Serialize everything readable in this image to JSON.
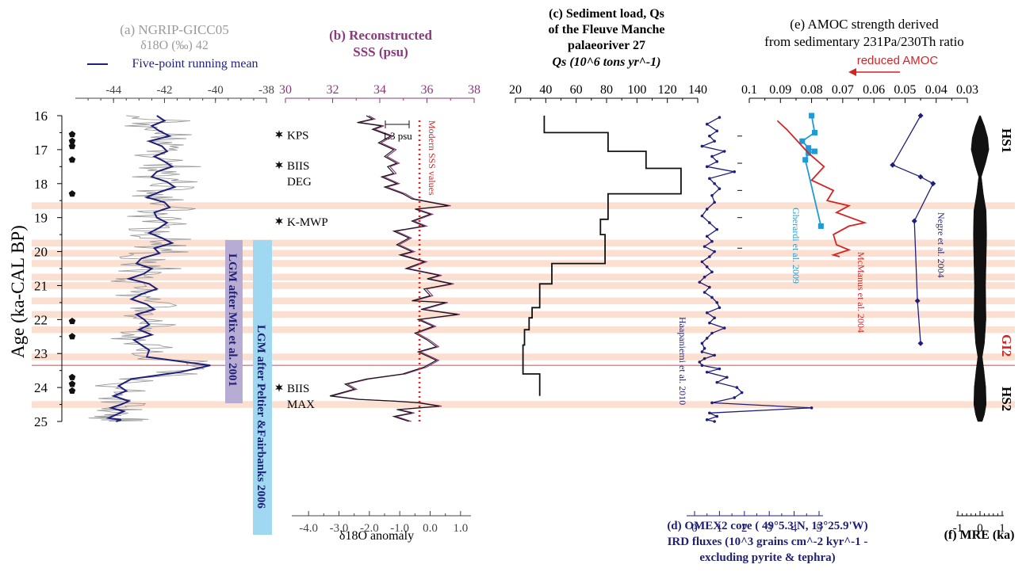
{
  "figure": {
    "y_axis": {
      "label": "Age (ka-CAL BP)",
      "ticks": [
        "16",
        "17",
        "18",
        "19",
        "20",
        "21",
        "22",
        "23",
        "24",
        "25"
      ],
      "ylim": [
        16,
        25
      ],
      "inverted": true
    },
    "stadials": {
      "hs1": "HS1",
      "gi2": "GI2",
      "hs2": "HS2"
    },
    "colors": {
      "navy": "#1f1f7a",
      "grey": "#9a9a9a",
      "magenta": "#8a3a7a",
      "red": "#d42424",
      "cyan": "#1f9ad6",
      "band": "#fbe0d2",
      "lgm_purple": "#b7acd3",
      "lgm_blue": "#9fd8f0",
      "gi2_line": "#e8828a"
    }
  },
  "panel_a": {
    "title": "(a) NGRIP-GICC05",
    "subtitle": "δ18O (‰) 42",
    "legend": "Five-point running mean",
    "ticks": [
      "-44",
      "-42",
      "-40",
      "-38"
    ]
  },
  "panel_b": {
    "title": "(b) Reconstructed",
    "subtitle": "SSS (psu)",
    "top_ticks": [
      "30",
      "32",
      "34",
      "36",
      "38"
    ],
    "bottom_ticks": [
      "-4.0",
      "-3.0",
      "-2.0",
      "-1.0",
      "0.0",
      "1.0"
    ],
    "bottom_label": "δ18O anomaly",
    "scale_bar": "1.3 psu",
    "modern_label": "Modern SSS values",
    "events": [
      {
        "label": "KPS",
        "age": 16.55
      },
      {
        "label": "BIIS",
        "label2": "DEG",
        "age": 17.45
      },
      {
        "label": "K-MWP",
        "age": 19.1
      },
      {
        "label": "BIIS",
        "label2": "MAX",
        "age": 24.0
      }
    ],
    "lgm_mix": "LGM after Mix et al. 2001",
    "lgm_peltier": "LGM after Peltier &Fairbanks 2006"
  },
  "panel_c": {
    "title_line1": "(c) Sediment load, Qs",
    "title_line2": "of the Fleuve Manche",
    "title_line3": "palaeoriver 27",
    "title_line4": "Qs (10^6 tons yr^-1)",
    "ticks": [
      "20",
      "40",
      "60",
      "80",
      "100",
      "120",
      "140"
    ]
  },
  "panel_d": {
    "label_line1": "(d) OMEX2 core ( 49°5.3'N, 13°25.9'W)",
    "label_line2": "IRD fluxes (10^3 grains cm^-2 kyr^-1 -",
    "label_line3": "excluding pyrite & tephra)",
    "ticks": [
      "0",
      "1",
      "2",
      "3",
      "4",
      "5"
    ],
    "source": "Haapaniemi et al. 2010"
  },
  "panel_e": {
    "title_line1": "(e) AMOC strength derived",
    "title_line2": "from sedimentary 231Pa/230Th ratio",
    "arrow_label": "reduced AMOC",
    "ticks": [
      "0.1",
      "0.09",
      "0.08",
      "0.07",
      "0.06",
      "0.05",
      "0.04",
      "0.03"
    ],
    "sources": [
      "Gherardi et al. 2009",
      "McManus et al. 2004",
      "Negre et al. 2004"
    ]
  },
  "panel_f": {
    "label": "(f) MRE (ka)",
    "ticks": [
      "-1",
      "0",
      "1"
    ]
  },
  "chart_data": [
    {
      "type": "line",
      "title": "(a) NGRIP-GICC05",
      "xlabel": "δ18O (‰)",
      "ylabel": "Age (ka-CAL BP)",
      "xlim": [
        -45.5,
        -38
      ],
      "ylim": [
        16,
        25
      ],
      "series": [
        {
          "name": "Five-point running mean",
          "x": [
            -42.3,
            -42.0,
            -42.5,
            -42.2,
            -41.8,
            -42.6,
            -42.1,
            -41.9,
            -42.4,
            -42.0,
            -41.7,
            -42.3,
            -42.5,
            -41.9,
            -41.6,
            -42.2,
            -42.7,
            -42.0,
            -41.8,
            -42.4,
            -42.3,
            -41.9,
            -42.2,
            -42.6,
            -42.1,
            -41.7,
            -42.4,
            -42.2,
            -42.9,
            -43.1,
            -42.5,
            -42.8,
            -43.4,
            -42.6,
            -42.3,
            -42.9,
            -43.3,
            -42.7,
            -42.4,
            -43.1,
            -42.8,
            -42.6,
            -43.0,
            -42.5,
            -43.2,
            -42.9,
            -42.6,
            -42.7,
            -40.2,
            -41.4,
            -43.3,
            -43.8,
            -43.5,
            -44.0,
            -43.4,
            -43.7,
            -44.1,
            -43.6,
            -43.9,
            -44.2,
            -43.7,
            -43.9
          ],
          "y": [
            16.0,
            16.15,
            16.3,
            16.45,
            16.6,
            16.75,
            16.9,
            17.05,
            17.2,
            17.35,
            17.5,
            17.65,
            17.8,
            17.95,
            18.1,
            18.25,
            18.4,
            18.55,
            18.7,
            18.85,
            19.0,
            19.15,
            19.3,
            19.45,
            19.6,
            19.75,
            19.9,
            20.05,
            20.2,
            20.35,
            20.5,
            20.65,
            20.8,
            20.95,
            21.1,
            21.25,
            21.4,
            21.55,
            21.7,
            21.85,
            22.0,
            22.15,
            22.3,
            22.45,
            22.6,
            22.75,
            22.9,
            23.1,
            23.35,
            23.55,
            23.75,
            23.95,
            24.1,
            24.25,
            24.4,
            24.5,
            24.6,
            24.7,
            24.8,
            24.9,
            24.95,
            25.0
          ]
        }
      ]
    },
    {
      "type": "line",
      "title": "(b) Reconstructed SSS (psu)",
      "xlabel": "δ18O anomaly",
      "ylabel": "Age (ka-CAL BP)",
      "xlim": [
        -4.5,
        1.5
      ],
      "ylim": [
        16,
        25
      ],
      "series": [
        {
          "name": "SSS",
          "x": [
            -2.1,
            -1.9,
            -2.4,
            -1.6,
            -1.9,
            -1.3,
            -1.7,
            -1.2,
            -1.5,
            -1.1,
            -1.4,
            -1.2,
            -1.6,
            -1.1,
            -1.5,
            -0.9,
            -0.6,
            0.6,
            -0.5,
            0.0,
            -0.6,
            -0.2,
            -1.2,
            -0.7,
            -1.1,
            -0.6,
            -1.0,
            -0.2,
            -0.8,
            0.3,
            -0.1,
            0.7,
            -0.2,
            0.0,
            -0.6,
            0.5,
            -0.3,
            0.9,
            -0.4,
            0.1,
            -0.5,
            -0.1,
            0.2,
            -0.4,
            0.2,
            -0.2,
            -0.9,
            -2.1,
            -2.8,
            -2.5,
            -3.3,
            -2.4,
            -1.2,
            -0.4,
            0.3,
            -1.1,
            -0.6,
            -1.2,
            -0.7
          ],
          "y": [
            16.0,
            16.1,
            16.2,
            16.3,
            16.4,
            16.6,
            16.8,
            17.0,
            17.2,
            17.4,
            17.5,
            17.7,
            17.8,
            18.0,
            18.1,
            18.3,
            18.45,
            18.65,
            18.75,
            18.9,
            19.1,
            19.25,
            19.4,
            19.6,
            19.8,
            20.0,
            20.1,
            20.3,
            20.5,
            20.7,
            20.8,
            20.95,
            21.1,
            21.3,
            21.45,
            21.5,
            21.7,
            21.85,
            22.0,
            22.2,
            22.4,
            22.6,
            22.8,
            22.95,
            23.2,
            23.4,
            23.6,
            23.75,
            23.9,
            24.05,
            24.25,
            24.35,
            24.4,
            24.45,
            24.55,
            24.65,
            24.75,
            24.85,
            25.0
          ]
        }
      ],
      "annotations": {
        "modern_value_x": -0.35
      }
    },
    {
      "type": "line",
      "title": "(c) Sediment load, Qs of the Fleuve Manche palaeoriver",
      "xlabel": "Qs (10^6 tons yr^-1)",
      "xlim": [
        20,
        140
      ],
      "ylim": [
        16,
        25
      ],
      "series": [
        {
          "name": "Qs",
          "x": [
            39,
            39,
            81,
            81,
            106,
            106,
            129,
            129,
            81,
            81,
            76,
            76,
            79,
            79,
            44,
            44,
            36,
            36,
            31,
            31,
            29,
            29,
            26,
            26,
            25,
            25,
            36,
            36
          ],
          "y": [
            16.0,
            16.5,
            16.5,
            17.05,
            17.05,
            17.55,
            17.55,
            18.3,
            18.3,
            19.05,
            19.05,
            19.5,
            19.5,
            20.35,
            20.35,
            20.95,
            20.95,
            21.65,
            21.65,
            21.95,
            21.95,
            22.3,
            22.3,
            22.75,
            22.75,
            23.6,
            23.6,
            24.25
          ]
        }
      ]
    },
    {
      "type": "line",
      "title": "(d) OMEX2 core IRD fluxes",
      "xlabel": "IRD fluxes (10^3 grains cm^-2 kyr^-1)",
      "xlim": [
        0,
        5
      ],
      "ylim": [
        16,
        25
      ],
      "series": [
        {
          "name": "Haapaniemi et al. 2010",
          "x": [
            1.0,
            0.5,
            0.9,
            0.6,
            0.8,
            0.3,
            1.2,
            0.7,
            0.9,
            0.5,
            1.6,
            0.6,
            0.8,
            1.0,
            0.7,
            0.8,
            0.5,
            0.3,
            0.6,
            0.9,
            0.5,
            0.7,
            0.4,
            0.8,
            0.6,
            0.3,
            0.5,
            0.7,
            0.4,
            0.2,
            0.6,
            0.4,
            0.7,
            0.9,
            1.0,
            0.5,
            0.8,
            0.6,
            1.2,
            0.7,
            0.5,
            0.3,
            0.4,
            0.3,
            0.8,
            0.4,
            0.2,
            0.3,
            1.0,
            0.5,
            1.3,
            0.9,
            1.7,
            1.9,
            1.6,
            0.7,
            4.7,
            0.6,
            0.9,
            0.5,
            0.8
          ],
          "y": [
            16.05,
            16.25,
            16.45,
            16.6,
            16.75,
            16.9,
            17.05,
            17.2,
            17.35,
            17.5,
            17.65,
            17.85,
            18.0,
            18.15,
            18.35,
            18.55,
            18.75,
            18.95,
            19.15,
            19.35,
            19.55,
            19.7,
            19.85,
            20.0,
            20.15,
            20.3,
            20.45,
            20.6,
            20.75,
            20.9,
            21.05,
            21.2,
            21.35,
            21.5,
            21.65,
            21.8,
            21.95,
            22.1,
            22.25,
            22.4,
            22.55,
            22.7,
            22.85,
            22.95,
            23.05,
            23.15,
            23.25,
            23.35,
            23.45,
            23.55,
            23.7,
            23.85,
            24.0,
            24.15,
            24.3,
            24.45,
            24.6,
            24.75,
            24.85,
            24.95,
            25.0
          ]
        }
      ]
    },
    {
      "type": "line",
      "title": "(e) AMOC strength derived from sedimentary 231Pa/230Th ratio",
      "xlabel": "231Pa/230Th",
      "xlim": [
        0.1,
        0.03
      ],
      "ylim": [
        16,
        25
      ],
      "series": [
        {
          "name": "Gherardi et al. 2009",
          "x": [
            0.08,
            0.079,
            0.083,
            0.081,
            0.079,
            0.081,
            0.082,
            0.077
          ],
          "y": [
            16.0,
            16.5,
            16.75,
            16.95,
            17.05,
            17.1,
            17.3,
            19.25
          ]
        },
        {
          "name": "McManus et al. 2004",
          "x": [
            0.091,
            0.088,
            0.081,
            0.076,
            0.08,
            0.073,
            0.075,
            0.068,
            0.072,
            0.063,
            0.068,
            0.073,
            0.072,
            0.068,
            0.073,
            0.071
          ],
          "y": [
            16.15,
            16.4,
            17.1,
            17.5,
            17.9,
            18.2,
            18.5,
            18.65,
            18.85,
            19.15,
            19.25,
            19.5,
            19.8,
            19.95,
            20.1,
            20.15
          ]
        },
        {
          "name": "Negre et al. 2004",
          "x": [
            0.045,
            0.054,
            0.045,
            0.041,
            0.047,
            0.046,
            0.045
          ],
          "y": [
            16.0,
            17.45,
            17.8,
            18.0,
            19.1,
            21.45,
            22.7
          ]
        }
      ]
    },
    {
      "type": "area",
      "title": "(f) MRE (ka)",
      "xlabel": "MRE (ka)",
      "xlim": [
        -1,
        1
      ],
      "ylim": [
        16,
        25
      ],
      "series": [
        {
          "name": "MRE",
          "x": [
            0.02,
            0.2,
            0.35,
            0.4,
            0.25,
            0.06,
            0.15,
            0.28,
            0.3,
            0.28,
            0.25,
            0.27,
            0.2,
            0.1,
            0.18,
            0.26,
            0.28,
            0.2,
            0.1
          ],
          "y": [
            16.0,
            16.3,
            16.65,
            17.0,
            17.4,
            17.8,
            18.3,
            18.8,
            19.5,
            20.2,
            21.0,
            22.0,
            22.7,
            23.1,
            23.5,
            24.0,
            24.5,
            24.8,
            25.0
          ]
        }
      ]
    }
  ]
}
